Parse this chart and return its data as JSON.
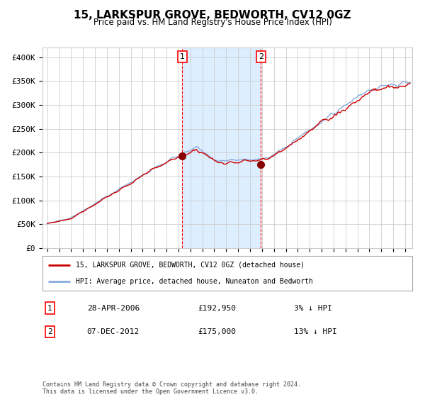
{
  "title": "15, LARKSPUR GROVE, BEDWORTH, CV12 0GZ",
  "subtitle": "Price paid vs. HM Land Registry's House Price Index (HPI)",
  "sale1_date": "28-APR-2006",
  "sale1_price": 192950,
  "sale1_label": "3% ↓ HPI",
  "sale2_date": "07-DEC-2012",
  "sale2_price": 175000,
  "sale2_label": "13% ↓ HPI",
  "sale1_x": 2006.32,
  "sale2_x": 2012.92,
  "ylim": [
    0,
    420000
  ],
  "xlim_start": 1994.6,
  "xlim_end": 2025.6,
  "hpi_color": "#88aadd",
  "price_color": "#cc0000",
  "dot_color": "#880000",
  "shade_color": "#ddeeff",
  "grid_color": "#cccccc",
  "bg_color": "#ffffff",
  "legend_label1": "15, LARKSPUR GROVE, BEDWORTH, CV12 0GZ (detached house)",
  "legend_label2": "HPI: Average price, detached house, Nuneaton and Bedworth",
  "footer": "Contains HM Land Registry data © Crown copyright and database right 2024.\nThis data is licensed under the Open Government Licence v3.0.",
  "yticks": [
    0,
    50000,
    100000,
    150000,
    200000,
    250000,
    300000,
    350000,
    400000
  ],
  "ytick_labels": [
    "£0",
    "£50K",
    "£100K",
    "£150K",
    "£200K",
    "£250K",
    "£300K",
    "£350K",
    "£400K"
  ]
}
